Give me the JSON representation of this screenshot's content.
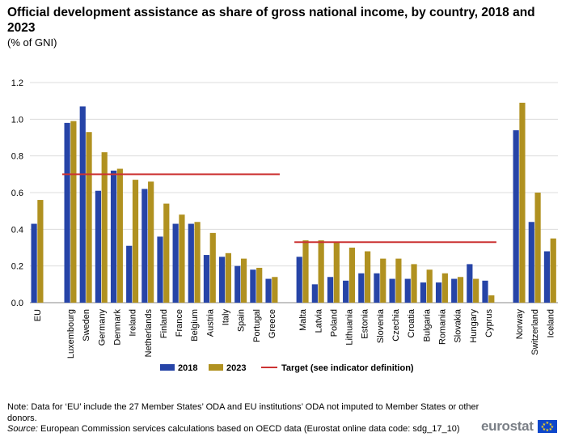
{
  "title": "Official development assistance as share of gross national income, by country, 2018 and 2023",
  "subtitle": "(% of GNI)",
  "chart_data": {
    "type": "bar",
    "title": "Official development assistance as share of gross national income, by country, 2018 and 2023",
    "ylabel": "% of GNI",
    "ylim": [
      0,
      1.2
    ],
    "yticks": [
      "0.0",
      "0.2",
      "0.4",
      "0.6",
      "0.8",
      "1.0",
      "1.2"
    ],
    "grid": true,
    "legend_position": "bottom",
    "categories": [
      "EU",
      "Luxembourg",
      "Sweden",
      "Germany",
      "Denmark",
      "Ireland",
      "Netherlands",
      "Finland",
      "France",
      "Belgium",
      "Austria",
      "Italy",
      "Spain",
      "Portugal",
      "Greece",
      "Malta",
      "Latvia",
      "Poland",
      "Lithuania",
      "Estonia",
      "Slovenia",
      "Czechia",
      "Croatia",
      "Bulgaria",
      "Romania",
      "Slovakia",
      "Hungary",
      "Cyprus",
      "Norway",
      "Switzerland",
      "Iceland"
    ],
    "groups": [
      {
        "categories": [
          "EU"
        ]
      },
      {
        "categories": [
          "Luxembourg",
          "Sweden",
          "Germany",
          "Denmark",
          "Ireland",
          "Netherlands",
          "Finland",
          "France",
          "Belgium",
          "Austria",
          "Italy",
          "Spain",
          "Portugal",
          "Greece"
        ],
        "target": 0.7
      },
      {
        "categories": [
          "Malta",
          "Latvia",
          "Poland",
          "Lithuania",
          "Estonia",
          "Slovenia",
          "Czechia",
          "Croatia",
          "Bulgaria",
          "Romania",
          "Slovakia",
          "Hungary",
          "Cyprus"
        ],
        "target": 0.33
      },
      {
        "categories": [
          "Norway",
          "Switzerland",
          "Iceland"
        ]
      }
    ],
    "series": [
      {
        "name": "2018",
        "color": "#2644a7",
        "values": [
          0.43,
          0.98,
          1.07,
          0.61,
          0.72,
          0.31,
          0.62,
          0.36,
          0.43,
          0.43,
          0.26,
          0.25,
          0.2,
          0.18,
          0.13,
          0.25,
          0.1,
          0.14,
          0.12,
          0.16,
          0.16,
          0.13,
          0.13,
          0.11,
          0.11,
          0.13,
          0.21,
          0.12,
          0.94,
          0.44,
          0.28
        ]
      },
      {
        "name": "2023",
        "color": "#b09120",
        "values": [
          0.56,
          0.99,
          0.93,
          0.82,
          0.73,
          0.67,
          0.66,
          0.54,
          0.48,
          0.44,
          0.38,
          0.27,
          0.24,
          0.19,
          0.14,
          0.34,
          0.34,
          0.33,
          0.3,
          0.28,
          0.24,
          0.24,
          0.21,
          0.18,
          0.16,
          0.14,
          0.13,
          0.04,
          1.09,
          0.6,
          0.35
        ]
      }
    ],
    "target_line": {
      "name": "Target (see indicator definition)",
      "color": "#cc3333"
    }
  },
  "footer": {
    "note": "Note: Data for ‘EU’ include the 27 Member States’ ODA and EU institutions’ ODA not imputed to Member States or other donors.",
    "source_label": "Source:",
    "source_text": " European Commission services calculations based on OECD data (Eurostat online data code: sdg_17_10)"
  },
  "logo": {
    "text": "eurostat"
  }
}
